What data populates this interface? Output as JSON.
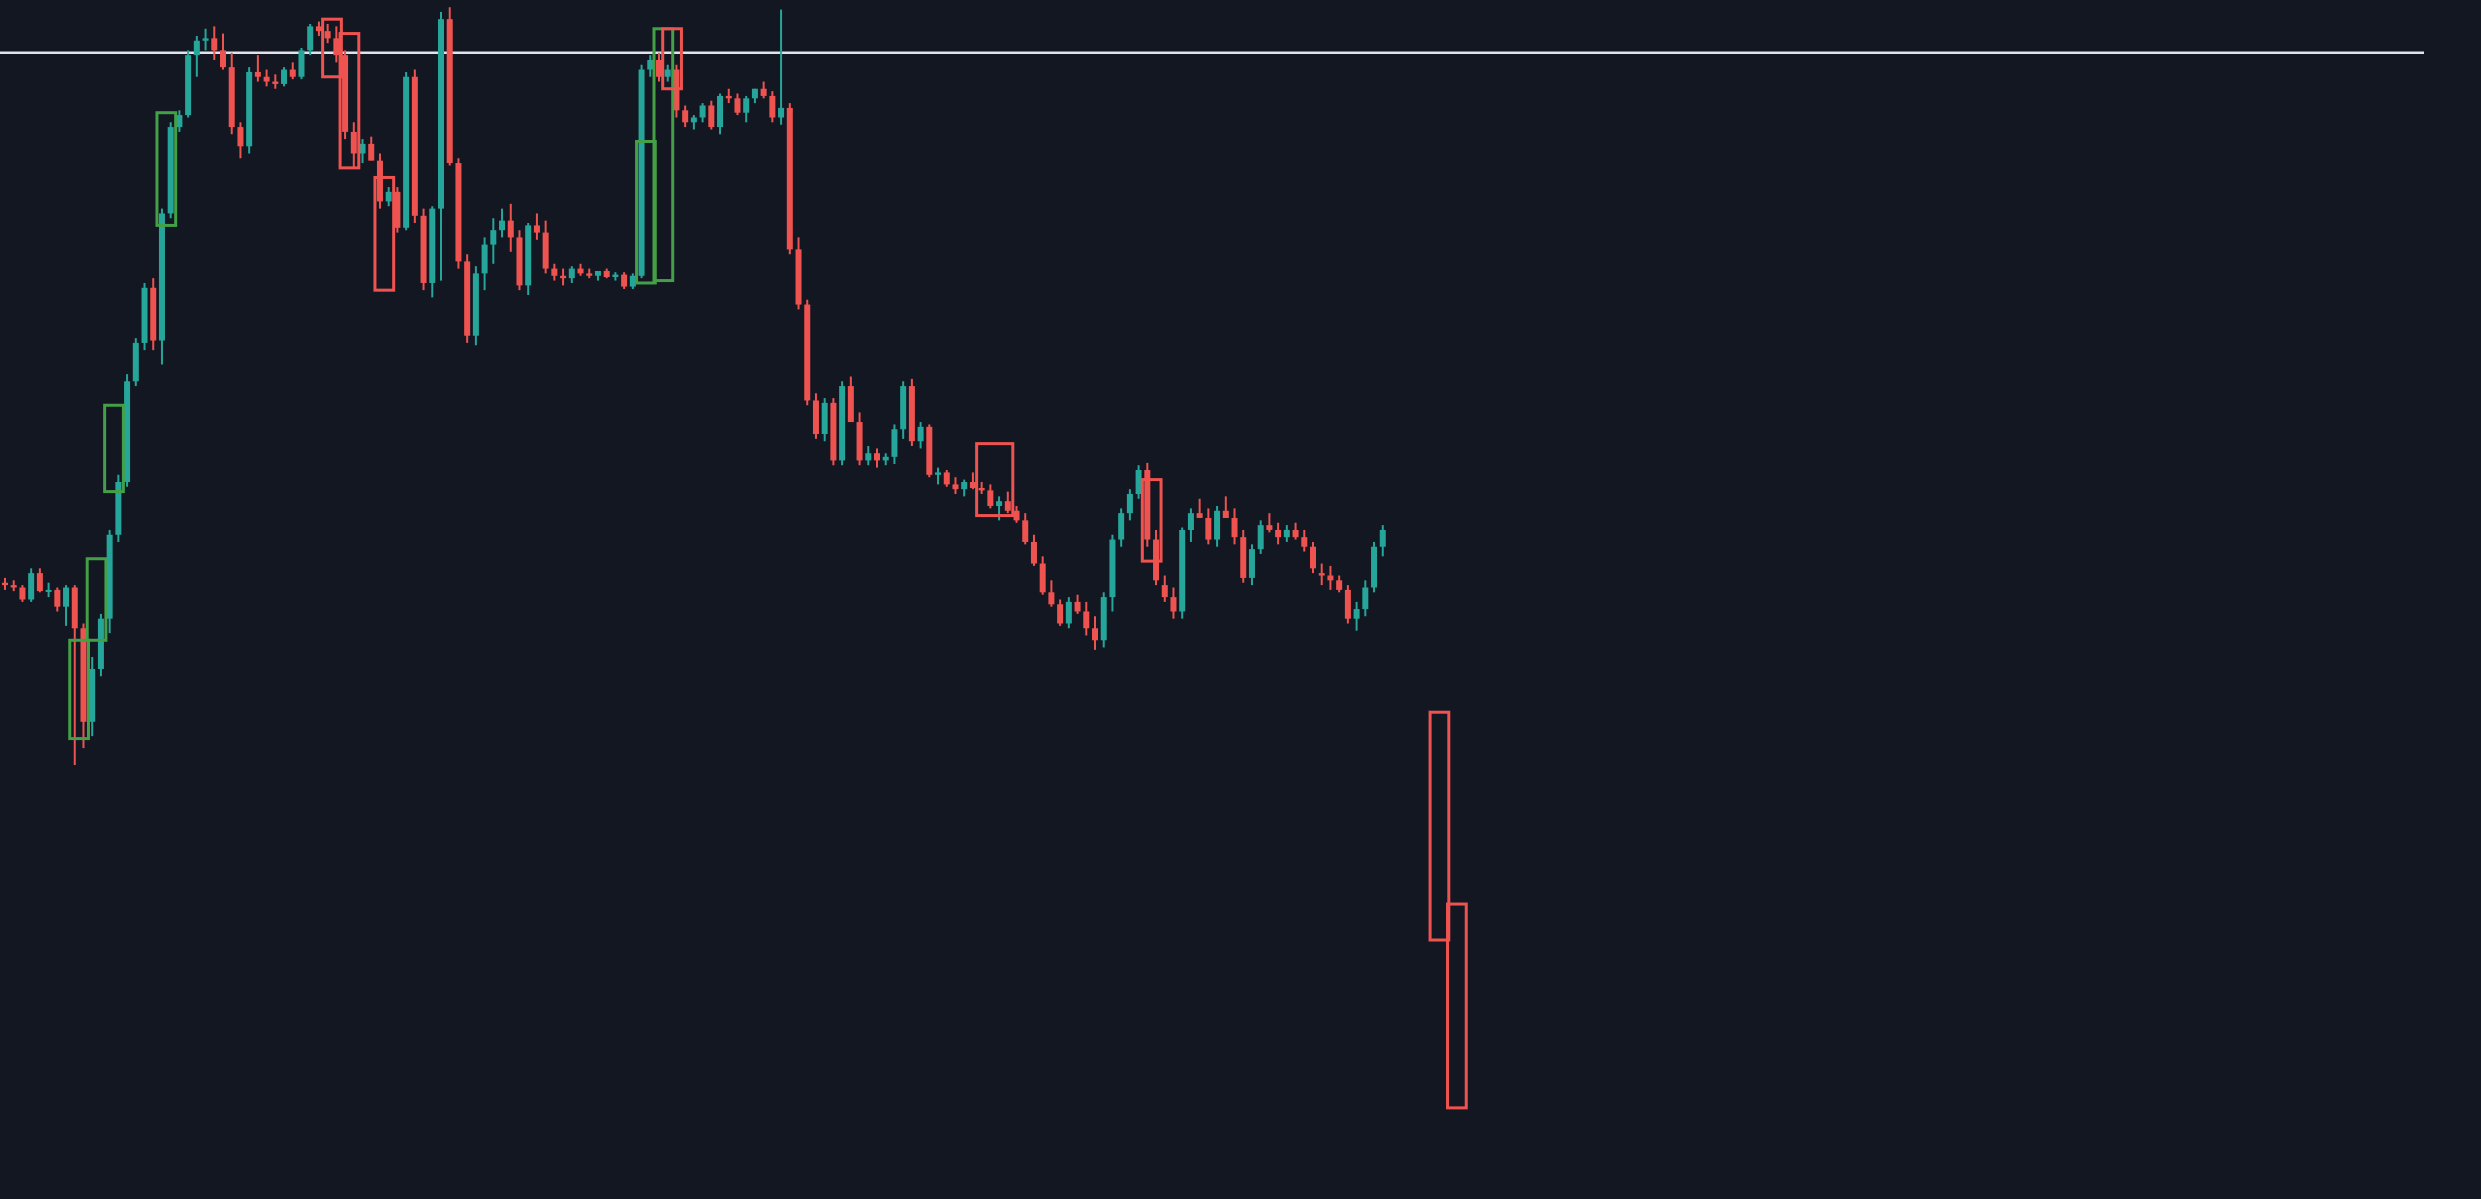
{
  "chart_data": {
    "type": "candlestick",
    "title": "",
    "xlabel": "",
    "ylabel": "",
    "grid": false,
    "ylim": [
      0,
      100
    ],
    "colors": {
      "background": "#131722",
      "up": "#26a69a",
      "down": "#ef5350",
      "bullish_box": "#43a047",
      "bearish_box": "#ef5350",
      "level_line": "#e0e3eb"
    },
    "horizontal_line": {
      "value": 95.6
    },
    "candles": [
      [
        51.4,
        51.8,
        50.8,
        51.2
      ],
      [
        51.2,
        51.6,
        50.7,
        51.0
      ],
      [
        51.0,
        51.2,
        49.8,
        50.0
      ],
      [
        50.0,
        52.6,
        49.8,
        52.2
      ],
      [
        52.2,
        52.6,
        50.6,
        50.7
      ],
      [
        50.7,
        51.4,
        50.2,
        50.8
      ],
      [
        50.8,
        51.0,
        49.0,
        49.4
      ],
      [
        49.4,
        51.2,
        47.8,
        51.0
      ],
      [
        51.0,
        51.2,
        36.2,
        47.6
      ],
      [
        47.6,
        48.0,
        37.6,
        39.8
      ],
      [
        39.8,
        45.2,
        38.6,
        44.2
      ],
      [
        44.2,
        48.8,
        43.6,
        48.4
      ],
      [
        48.4,
        55.8,
        47.2,
        55.4
      ],
      [
        55.4,
        60.4,
        54.8,
        59.8
      ],
      [
        59.8,
        68.8,
        59.4,
        68.2
      ],
      [
        68.2,
        71.8,
        67.8,
        71.4
      ],
      [
        71.4,
        76.4,
        70.8,
        76.0
      ],
      [
        76.0,
        76.8,
        70.8,
        71.6
      ],
      [
        71.6,
        82.6,
        69.6,
        82.2
      ],
      [
        82.2,
        89.8,
        81.8,
        89.4
      ],
      [
        89.4,
        90.8,
        89.0,
        90.4
      ],
      [
        90.4,
        95.8,
        90.2,
        95.4
      ],
      [
        95.4,
        97.0,
        93.6,
        96.6
      ],
      [
        96.6,
        97.6,
        95.8,
        96.8
      ],
      [
        96.8,
        97.8,
        95.0,
        95.8
      ],
      [
        95.8,
        97.2,
        94.2,
        94.4
      ],
      [
        94.4,
        95.6,
        88.8,
        89.4
      ],
      [
        89.4,
        89.8,
        86.8,
        87.8
      ],
      [
        87.8,
        94.4,
        87.2,
        94.0
      ],
      [
        94.0,
        95.4,
        93.2,
        93.6
      ],
      [
        93.6,
        94.2,
        92.8,
        93.2
      ],
      [
        93.2,
        93.8,
        92.6,
        93.0
      ],
      [
        93.0,
        94.4,
        92.8,
        94.2
      ],
      [
        94.2,
        94.8,
        93.4,
        93.6
      ],
      [
        93.6,
        96.0,
        93.4,
        95.8
      ],
      [
        95.8,
        98.0,
        95.4,
        97.8
      ],
      [
        97.8,
        98.2,
        97.0,
        97.4
      ],
      [
        97.4,
        98.0,
        96.4,
        96.8
      ],
      [
        96.8,
        97.8,
        94.8,
        95.4
      ],
      [
        95.4,
        95.8,
        88.4,
        89.0
      ],
      [
        89.0,
        89.8,
        86.0,
        87.2
      ],
      [
        87.2,
        88.4,
        86.4,
        88.0
      ],
      [
        88.0,
        88.6,
        86.6,
        86.6
      ],
      [
        86.6,
        87.2,
        82.6,
        83.2
      ],
      [
        83.2,
        84.4,
        82.8,
        84.0
      ],
      [
        84.0,
        84.4,
        80.6,
        81.0
      ],
      [
        81.0,
        94.0,
        80.8,
        93.6
      ],
      [
        93.6,
        94.2,
        81.4,
        82.0
      ],
      [
        82.0,
        82.6,
        75.8,
        76.4
      ],
      [
        76.4,
        82.8,
        75.2,
        82.6
      ],
      [
        82.6,
        99.0,
        76.6,
        98.4
      ],
      [
        98.4,
        99.4,
        86.2,
        86.4
      ],
      [
        86.4,
        86.8,
        77.6,
        78.2
      ],
      [
        78.2,
        78.8,
        71.4,
        72.0
      ],
      [
        72.0,
        77.8,
        71.2,
        77.2
      ],
      [
        77.2,
        80.2,
        75.8,
        79.6
      ],
      [
        79.6,
        81.8,
        78.0,
        80.8
      ],
      [
        80.8,
        82.6,
        80.2,
        81.6
      ],
      [
        81.6,
        83.0,
        79.0,
        80.2
      ],
      [
        80.2,
        80.8,
        75.8,
        76.2
      ],
      [
        76.2,
        81.4,
        75.4,
        81.2
      ],
      [
        81.2,
        82.2,
        80.0,
        80.6
      ],
      [
        80.6,
        81.6,
        77.2,
        77.6
      ],
      [
        77.6,
        78.0,
        76.6,
        77.0
      ],
      [
        77.0,
        77.6,
        76.2,
        76.8
      ],
      [
        76.8,
        77.8,
        76.4,
        77.6
      ],
      [
        77.6,
        78.0,
        77.0,
        77.2
      ],
      [
        77.2,
        77.6,
        76.8,
        77.0
      ],
      [
        77.0,
        77.4,
        76.6,
        77.4
      ],
      [
        77.4,
        77.6,
        76.8,
        76.9
      ],
      [
        76.9,
        77.3,
        76.6,
        77.1
      ],
      [
        77.1,
        77.3,
        75.9,
        76.1
      ],
      [
        76.1,
        77.2,
        75.9,
        77.0
      ],
      [
        77.0,
        94.6,
        76.8,
        94.2
      ],
      [
        94.2,
        95.4,
        93.6,
        95.0
      ],
      [
        95.0,
        95.6,
        93.2,
        93.6
      ],
      [
        93.6,
        94.6,
        93.2,
        94.2
      ],
      [
        94.2,
        94.6,
        90.2,
        90.8
      ],
      [
        90.8,
        91.2,
        89.4,
        89.8
      ],
      [
        89.8,
        90.4,
        89.2,
        90.2
      ],
      [
        90.2,
        91.4,
        89.8,
        91.2
      ],
      [
        91.2,
        91.6,
        89.2,
        89.4
      ],
      [
        89.4,
        92.2,
        88.8,
        92.0
      ],
      [
        92.0,
        92.6,
        91.4,
        91.8
      ],
      [
        91.8,
        92.2,
        90.4,
        90.6
      ],
      [
        90.6,
        92.0,
        89.8,
        91.8
      ],
      [
        91.8,
        92.6,
        91.4,
        92.6
      ],
      [
        92.6,
        93.2,
        91.8,
        92.0
      ],
      [
        92.0,
        92.4,
        89.8,
        90.2
      ],
      [
        90.2,
        99.2,
        89.6,
        91.0
      ],
      [
        91.0,
        91.4,
        78.8,
        79.2
      ],
      [
        79.2,
        80.2,
        74.2,
        74.6
      ],
      [
        74.6,
        75.0,
        66.2,
        66.6
      ],
      [
        66.6,
        67.2,
        63.4,
        63.8
      ],
      [
        63.8,
        66.8,
        63.2,
        66.4
      ],
      [
        66.4,
        66.8,
        61.2,
        61.6
      ],
      [
        61.6,
        68.2,
        61.2,
        67.8
      ],
      [
        67.8,
        68.6,
        64.8,
        64.8
      ],
      [
        64.8,
        65.6,
        61.2,
        61.6
      ],
      [
        61.6,
        62.8,
        61.2,
        62.2
      ],
      [
        62.2,
        62.6,
        61.0,
        61.6
      ],
      [
        61.6,
        62.2,
        61.2,
        61.9
      ],
      [
        61.9,
        64.6,
        61.3,
        64.2
      ],
      [
        64.2,
        68.2,
        63.4,
        67.8
      ],
      [
        67.8,
        68.4,
        62.8,
        63.2
      ],
      [
        63.2,
        64.8,
        62.6,
        64.4
      ],
      [
        64.4,
        64.6,
        60.2,
        60.4
      ],
      [
        60.4,
        61.0,
        59.6,
        60.6
      ],
      [
        60.6,
        60.8,
        59.4,
        59.6
      ],
      [
        59.6,
        60.2,
        58.8,
        59.2
      ],
      [
        59.2,
        60.0,
        58.6,
        59.8
      ],
      [
        59.8,
        60.6,
        59.2,
        59.3
      ],
      [
        59.3,
        59.8,
        58.8,
        59.1
      ],
      [
        59.1,
        59.6,
        57.6,
        57.8
      ],
      [
        57.8,
        58.6,
        56.6,
        58.2
      ],
      [
        58.2,
        59.0,
        57.2,
        57.4
      ],
      [
        57.4,
        57.8,
        56.4,
        56.6
      ],
      [
        56.6,
        57.2,
        54.6,
        54.8
      ],
      [
        54.8,
        55.4,
        52.8,
        53.0
      ],
      [
        53.0,
        53.6,
        50.4,
        50.6
      ],
      [
        50.6,
        51.6,
        49.4,
        49.6
      ],
      [
        49.6,
        50.0,
        47.8,
        48.0
      ],
      [
        48.0,
        50.2,
        47.6,
        49.8
      ],
      [
        49.8,
        50.4,
        48.8,
        49.0
      ],
      [
        49.0,
        49.8,
        47.0,
        47.6
      ],
      [
        47.6,
        48.6,
        45.8,
        46.6
      ],
      [
        46.6,
        50.6,
        46.0,
        50.2
      ],
      [
        50.2,
        55.4,
        49.0,
        55.0
      ],
      [
        55.0,
        57.6,
        54.4,
        57.2
      ],
      [
        57.2,
        59.2,
        56.6,
        58.8
      ],
      [
        58.8,
        61.2,
        58.4,
        60.8
      ],
      [
        60.8,
        61.4,
        54.4,
        55.0
      ],
      [
        55.0,
        55.8,
        51.2,
        51.6
      ],
      [
        51.2,
        52.0,
        49.8,
        50.2
      ],
      [
        50.2,
        51.0,
        48.4,
        49.0
      ],
      [
        49.0,
        56.0,
        48.4,
        55.8
      ],
      [
        55.8,
        57.6,
        54.8,
        57.2
      ],
      [
        57.2,
        58.4,
        56.8,
        56.8
      ],
      [
        56.8,
        57.6,
        54.6,
        55.0
      ],
      [
        55.0,
        57.8,
        54.4,
        57.4
      ],
      [
        57.4,
        58.6,
        56.8,
        56.8
      ],
      [
        56.8,
        57.6,
        54.6,
        55.2
      ],
      [
        55.2,
        55.8,
        51.4,
        51.8
      ],
      [
        51.8,
        54.6,
        51.2,
        54.2
      ],
      [
        54.2,
        56.6,
        53.8,
        56.2
      ],
      [
        56.2,
        57.2,
        55.6,
        55.8
      ],
      [
        55.8,
        56.4,
        54.6,
        55.2
      ],
      [
        55.2,
        56.2,
        54.8,
        55.8
      ],
      [
        55.8,
        56.4,
        55.0,
        55.2
      ],
      [
        55.2,
        55.8,
        54.0,
        54.4
      ],
      [
        54.4,
        54.8,
        52.2,
        52.6
      ],
      [
        52.2,
        53.0,
        51.2,
        52.0
      ],
      [
        52.0,
        52.8,
        50.8,
        51.6
      ],
      [
        51.6,
        52.0,
        50.6,
        50.8
      ],
      [
        50.8,
        51.2,
        48.0,
        48.4
      ],
      [
        48.4,
        49.8,
        47.4,
        49.2
      ],
      [
        49.2,
        51.6,
        48.6,
        51.0
      ],
      [
        51.0,
        54.8,
        50.6,
        54.4
      ],
      [
        54.4,
        56.2,
        53.6,
        55.8
      ]
    ],
    "annotated_boxes": [
      {
        "type": "bullish",
        "start": 8,
        "end": 9,
        "bottom": 38.4,
        "top": 46.6
      },
      {
        "type": "bullish",
        "start": 10,
        "end": 11,
        "bottom": 46.6,
        "top": 53.4
      },
      {
        "type": "bullish",
        "start": 12,
        "end": 13,
        "bottom": 59.0,
        "top": 66.2
      },
      {
        "type": "bullish",
        "start": 18,
        "end": 19,
        "bottom": 81.2,
        "top": 90.6
      },
      {
        "type": "bearish",
        "start": 37,
        "end": 38,
        "bottom": 93.6,
        "top": 98.4
      },
      {
        "type": "bearish",
        "start": 39,
        "end": 40,
        "bottom": 86.0,
        "top": 97.2
      },
      {
        "type": "bearish",
        "start": 43,
        "end": 44,
        "bottom": 75.8,
        "top": 85.2
      },
      {
        "type": "bullish",
        "start": 73,
        "end": 74,
        "bottom": 76.4,
        "top": 88.2
      },
      {
        "type": "bullish",
        "start": 75,
        "end": 76,
        "bottom": 76.6,
        "top": 97.6
      },
      {
        "type": "bearish",
        "start": 76,
        "end": 77,
        "bottom": 92.6,
        "top": 97.6
      },
      {
        "type": "bearish",
        "start": 112,
        "end": 115,
        "bottom": 57.0,
        "top": 63.0
      },
      {
        "type": "bearish",
        "start": 131,
        "end": 132,
        "bottom": 53.2,
        "top": 60.0
      },
      {
        "type": "bearish",
        "start": 164,
        "end": 165,
        "bottom": 21.6,
        "top": 40.6
      },
      {
        "type": "bearish",
        "start": 166,
        "end": 167,
        "bottom": 7.6,
        "top": 24.6
      }
    ]
  }
}
